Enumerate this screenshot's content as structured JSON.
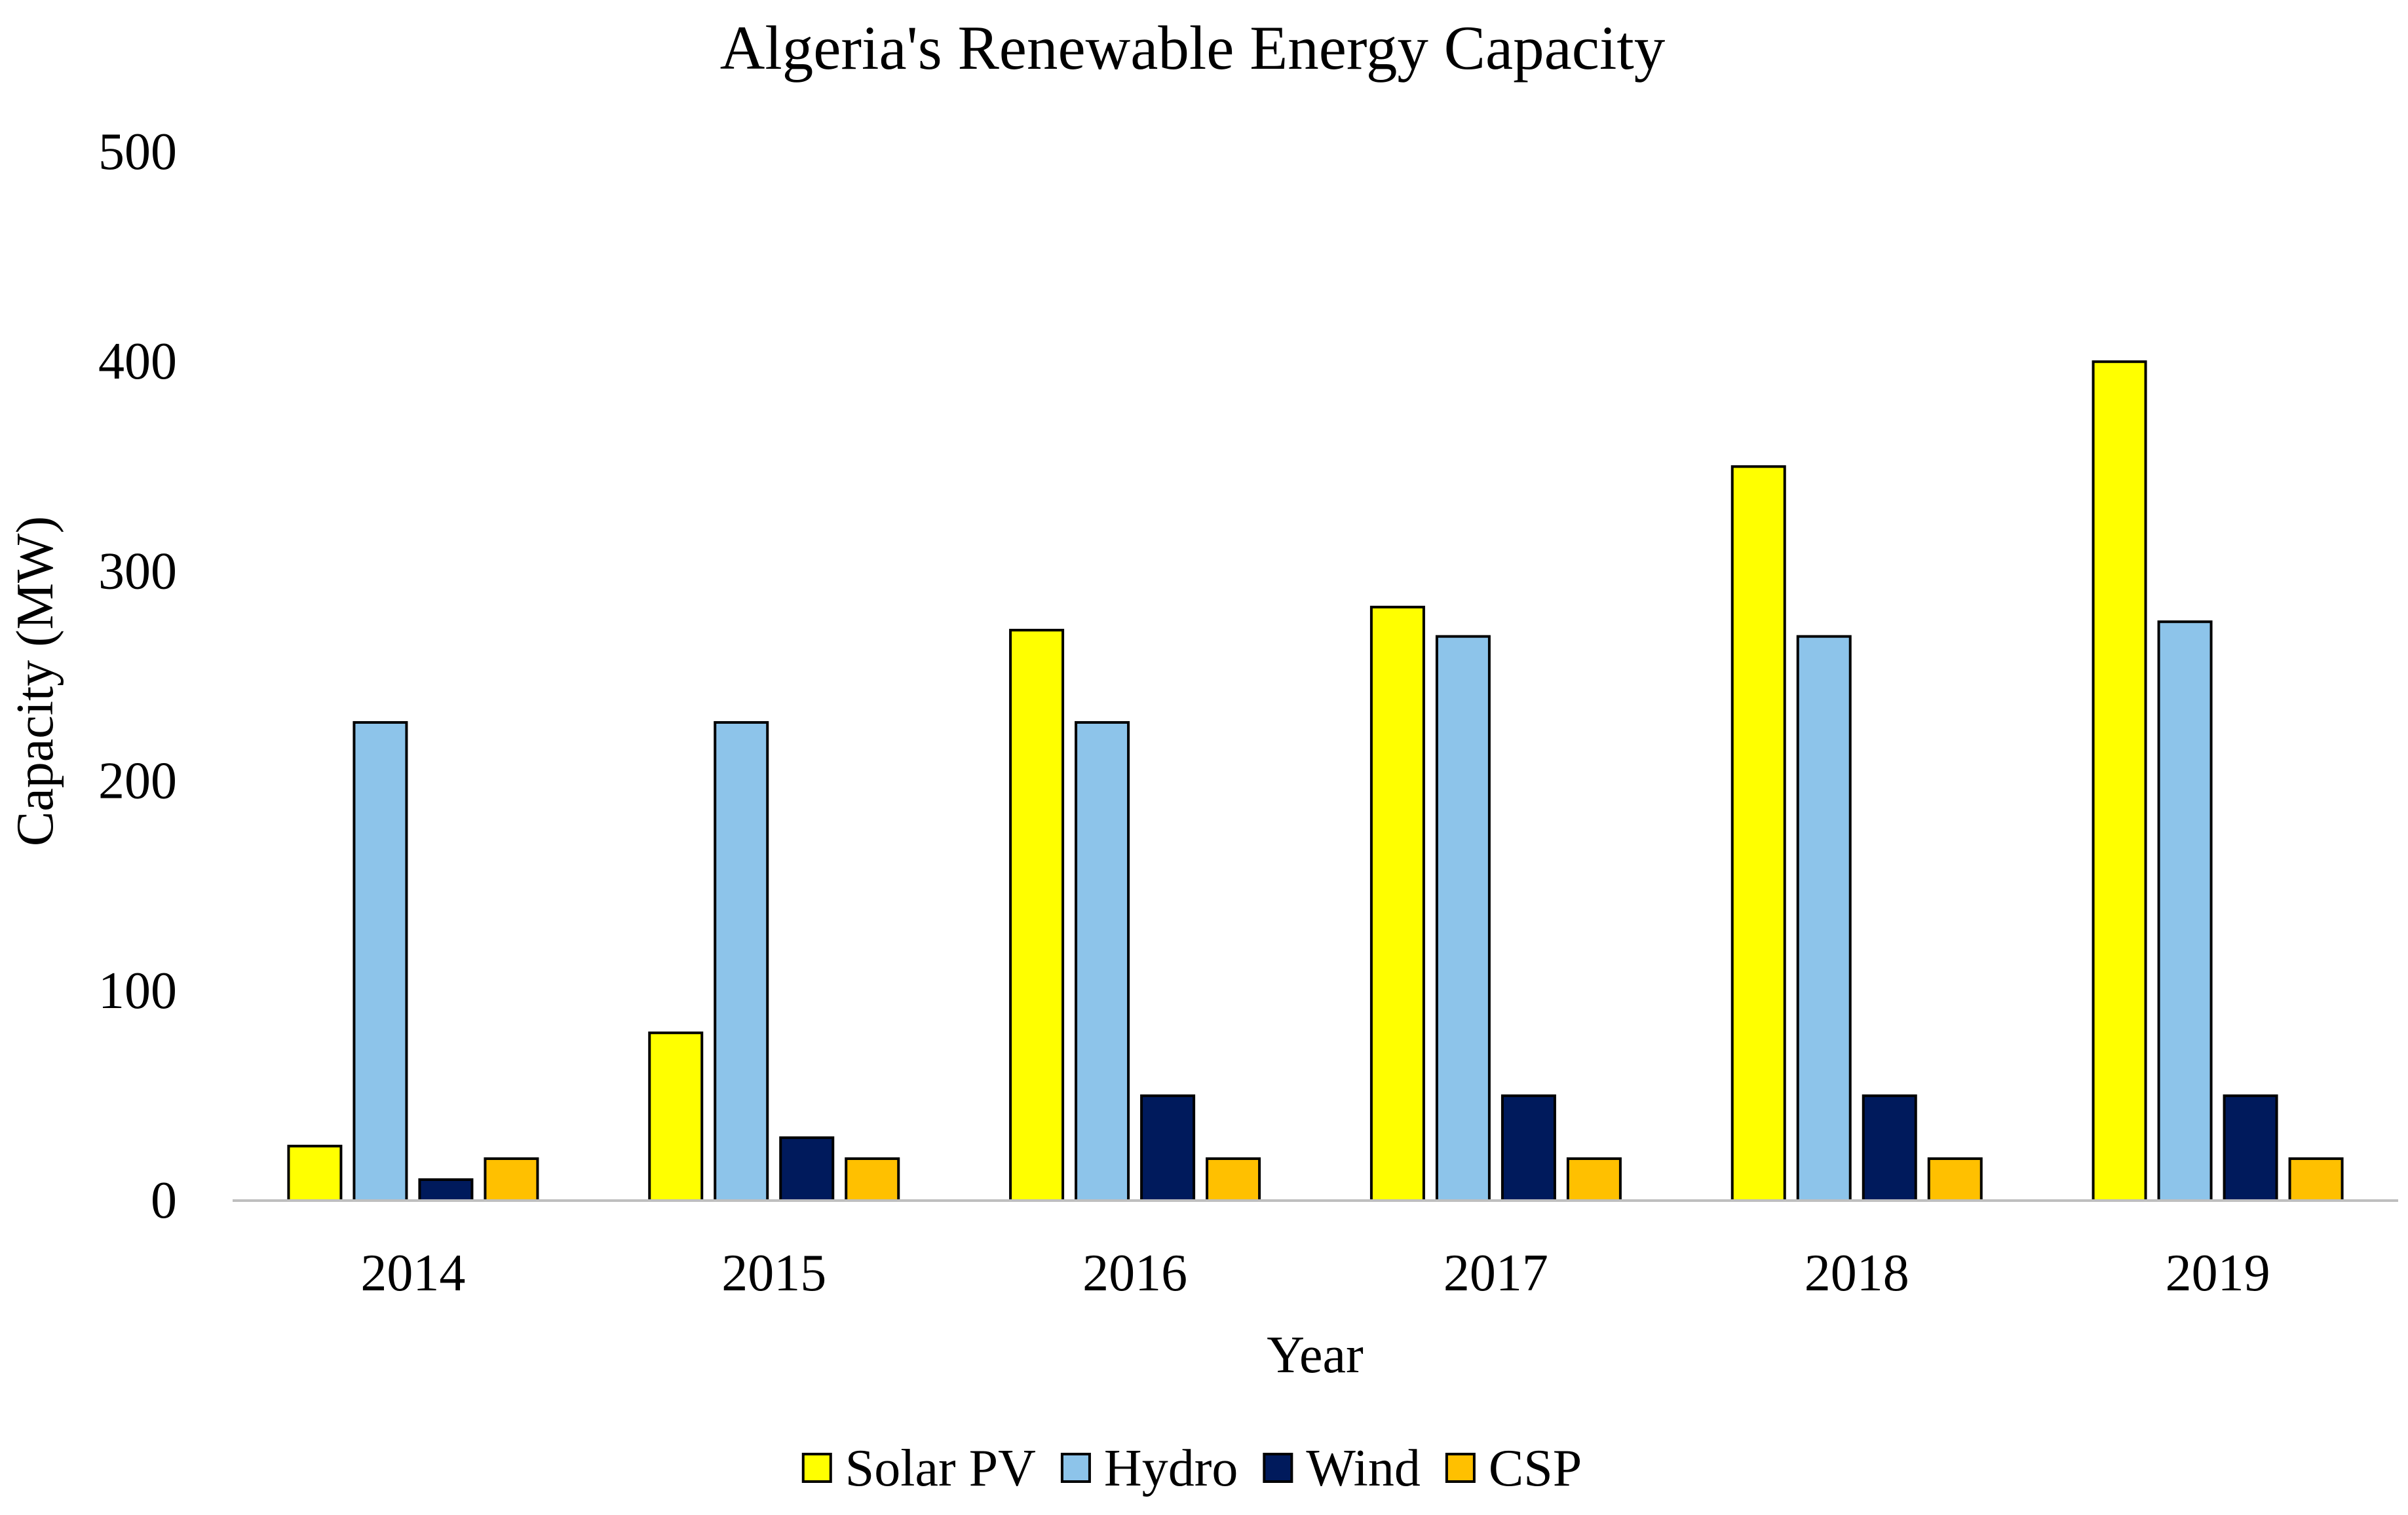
{
  "chart_data": {
    "type": "bar",
    "title": "Algeria's Renewable Energy Capacity",
    "xlabel": "Year",
    "ylabel": "Capacity (MW)",
    "categories": [
      "2014",
      "2015",
      "2016",
      "2017",
      "2018",
      "2019"
    ],
    "ylim": [
      0,
      500
    ],
    "yticks": [
      "0",
      "100",
      "200",
      "300",
      "400",
      "500"
    ],
    "grid": false,
    "legend_position": "bottom",
    "series": [
      {
        "name": "Solar PV",
        "color": "#FFFF00",
        "values": [
          26,
          80,
          272,
          283,
          350,
          400
        ]
      },
      {
        "name": "Hydro",
        "color": "#8DC4EA",
        "values": [
          228,
          228,
          228,
          269,
          269,
          276
        ]
      },
      {
        "name": "Wind",
        "color": "#001A5C",
        "values": [
          10,
          30,
          50,
          50,
          50,
          50
        ]
      },
      {
        "name": "CSP",
        "color": "#FFC000",
        "values": [
          20,
          20,
          20,
          20,
          20,
          20
        ]
      }
    ]
  }
}
